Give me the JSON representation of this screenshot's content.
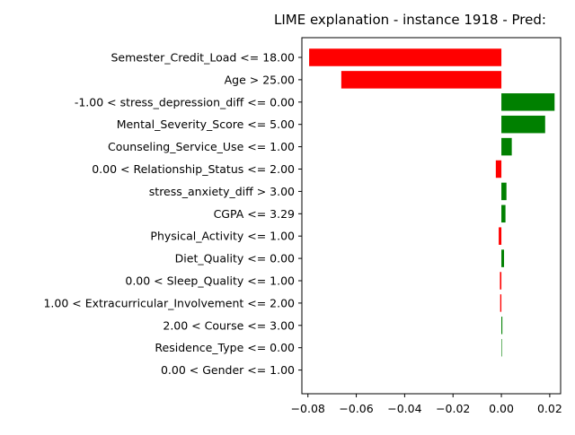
{
  "chart_data": {
    "type": "bar",
    "orientation": "horizontal",
    "title": "LIME explanation - instance 1918 - Pred:",
    "xlabel": "",
    "ylabel": "",
    "xlim": [
      -0.0825,
      0.0245
    ],
    "xticks": [
      -0.08,
      -0.06,
      -0.04,
      -0.02,
      0.0,
      0.02
    ],
    "xtick_labels": [
      "−0.08",
      "−0.06",
      "−0.04",
      "−0.02",
      "0.00",
      "0.02"
    ],
    "grid": false,
    "colors": {
      "positive": "#008000",
      "negative": "#ff0000",
      "axis": "#000000"
    },
    "categories": [
      "Semester_Credit_Load <= 18.00",
      "Age > 25.00",
      "-1.00 < stress_depression_diff <= 0.00",
      "Mental_Severity_Score <= 5.00",
      "Counseling_Service_Use <= 1.00",
      "0.00 < Relationship_Status <= 2.00",
      "stress_anxiety_diff > 3.00",
      "CGPA <= 3.29",
      "Physical_Activity <= 1.00",
      "Diet_Quality <= 0.00",
      "0.00 < Sleep_Quality <= 1.00",
      "1.00 < Extracurricular_Involvement <= 2.00",
      "2.00 < Course <= 3.00",
      "Residence_Type <= 0.00",
      "0.00 < Gender <= 1.00"
    ],
    "values": [
      -0.0795,
      -0.0662,
      0.022,
      0.0181,
      0.0043,
      -0.0023,
      0.0021,
      0.0017,
      -0.0011,
      0.0011,
      -0.0006,
      -0.0005,
      0.0004,
      0.0002,
      0.0
    ]
  }
}
